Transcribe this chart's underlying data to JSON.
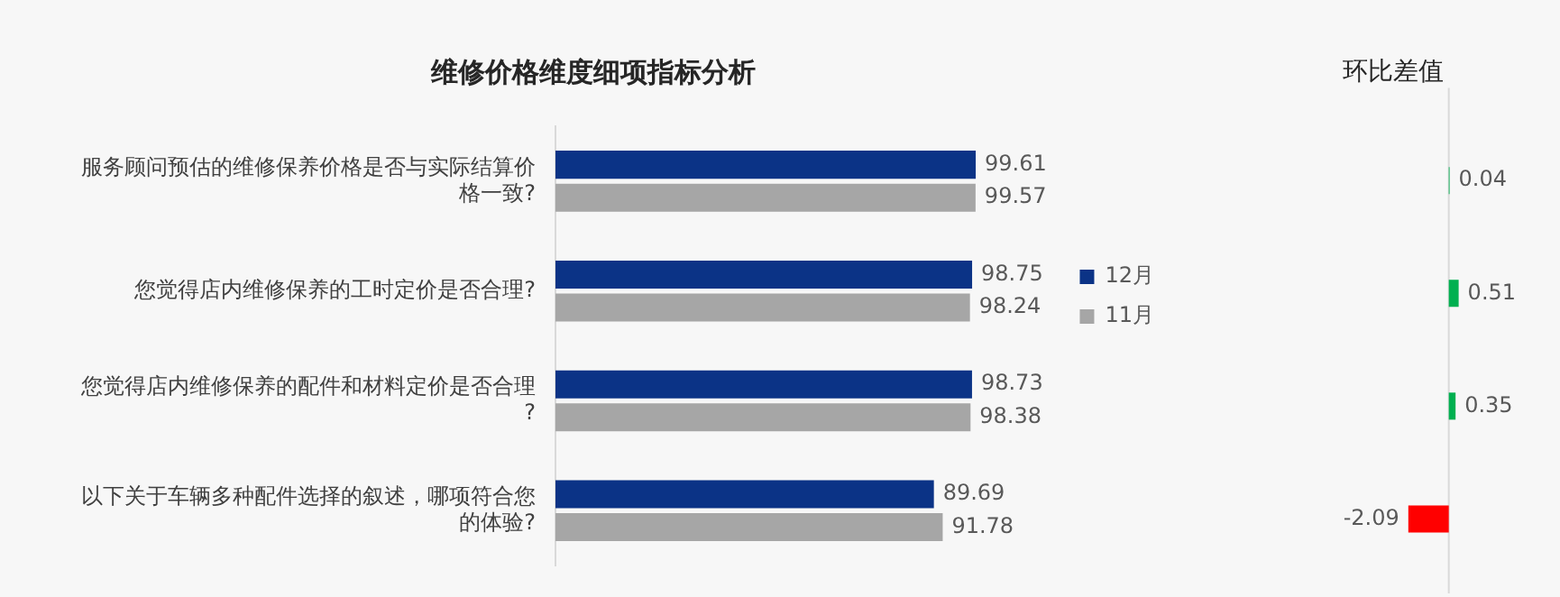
{
  "chart_data": [
    {
      "type": "bar",
      "orientation": "horizontal",
      "title": "维修价格维度细项指标分析",
      "categories": [
        "服务顾问预估的维修保养价格是否与实际结算价格一致?",
        "您觉得店内维修保养的工时定价是否合理?",
        "您觉得店内维修保养的配件和材料定价是否合理?",
        "以下关于车辆多种配件选择的叙述，哪项符合您的体验?"
      ],
      "series": [
        {
          "name": "12月",
          "color": "#0b3386",
          "values": [
            99.61,
            98.75,
            98.73,
            89.69
          ]
        },
        {
          "name": "11月",
          "color": "#a6a6a6",
          "values": [
            99.57,
            98.24,
            98.38,
            91.78
          ]
        }
      ],
      "data_labels": true,
      "legend": "right",
      "grid": false
    },
    {
      "type": "bar",
      "orientation": "horizontal",
      "title": "环比差值",
      "categories": [
        null,
        null,
        null,
        null
      ],
      "values": [
        0.04,
        0.51,
        0.35,
        -2.09
      ],
      "colors": [
        "#00b050",
        "#00b050",
        "#00b050",
        "#ff0000"
      ],
      "data_labels": true,
      "grid": false
    }
  ]
}
